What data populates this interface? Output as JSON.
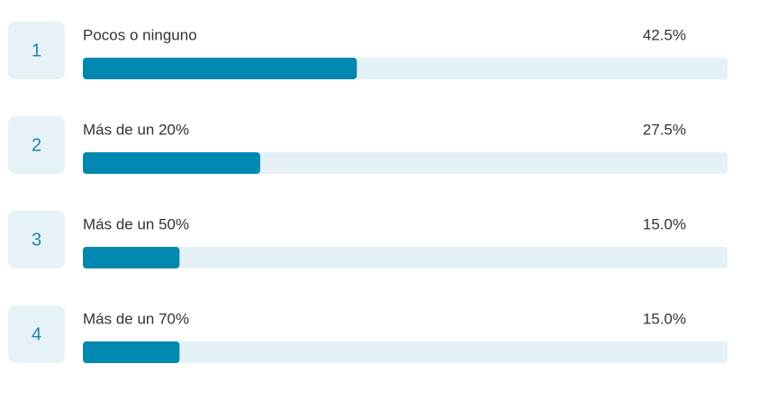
{
  "chart_data": {
    "type": "bar",
    "orientation": "horizontal",
    "ranks": [
      "1",
      "2",
      "3",
      "4"
    ],
    "categories": [
      "Pocos o ninguno",
      "Más de un 20%",
      "Más de un 50%",
      "Más de un 70%"
    ],
    "values": [
      42.5,
      27.5,
      15.0,
      15.0
    ],
    "value_labels": [
      "42.5%",
      "27.5%",
      "15.0%",
      "15.0%"
    ],
    "xlim": [
      0,
      100
    ],
    "color": "#0088b1",
    "track_color": "#e4f1f7"
  }
}
